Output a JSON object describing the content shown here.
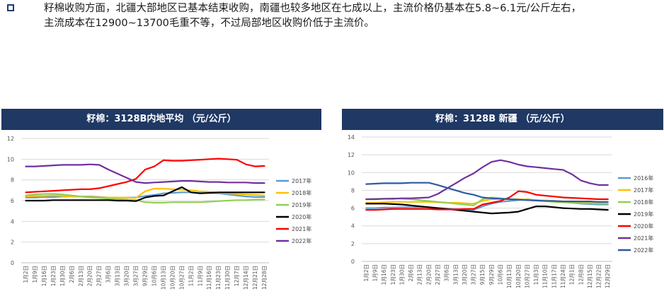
{
  "paragraph": {
    "line1": "籽棉收购方面，北疆大部地区已基本结束收购，南疆也较多地区在七成以上，主流价格仍基本在5.8~6.1元/公斤左右，",
    "line2": "主流成本在12900~13700毛重不等，不过局部地区收购价低于主流价。"
  },
  "chart_data": [
    {
      "type": "line",
      "title": "籽棉：3128B内地平均 （元/公斤）",
      "ylim": [
        0,
        12
      ],
      "yticks": [
        0,
        2,
        4,
        6,
        8,
        10,
        12
      ],
      "categories": [
        "1月2日",
        "1月9日",
        "1月16日",
        "1月23日",
        "1月30日",
        "2月6日",
        "2月13日",
        "2月20日",
        "2月27日",
        "3月6日",
        "3月13日",
        "3月20日",
        "3月27日",
        "9月29日",
        "10月6日",
        "10月13日",
        "10月20日",
        "10月27日",
        "11月2日",
        "11月9日",
        "11月16日",
        "11月23日",
        "11月30日",
        "12月7日",
        "12月14日",
        "12月21日",
        "12月28日"
      ],
      "series": [
        {
          "name": "2017年",
          "color": "#5b9bd5",
          "values": [
            6.3,
            6.3,
            6.35,
            6.35,
            6.4,
            6.4,
            6.4,
            6.4,
            6.35,
            6.3,
            6.3,
            6.3,
            6.3,
            6.45,
            6.55,
            6.7,
            6.75,
            6.8,
            6.8,
            6.75,
            6.75,
            6.7,
            6.6,
            6.5,
            6.4,
            6.35,
            6.35
          ]
        },
        {
          "name": "2018年",
          "color": "#ffc000",
          "values": [
            6.4,
            6.45,
            6.45,
            6.5,
            6.45,
            6.4,
            6.4,
            6.35,
            6.3,
            6.3,
            6.3,
            6.3,
            6.25,
            6.9,
            7.15,
            7.15,
            7.1,
            7.05,
            7.0,
            6.9,
            6.85,
            6.75,
            6.7,
            6.65,
            6.6,
            6.55,
            6.5
          ]
        },
        {
          "name": "2019年",
          "color": "#92d050",
          "values": [
            6.5,
            6.6,
            6.65,
            6.65,
            6.6,
            6.5,
            6.4,
            6.3,
            6.25,
            6.2,
            6.15,
            6.1,
            6.05,
            5.85,
            5.8,
            5.8,
            5.85,
            5.85,
            5.85,
            5.85,
            5.9,
            5.95,
            6.0,
            6.05,
            6.05,
            6.1,
            6.1
          ]
        },
        {
          "name": "2020年",
          "color": "#000000",
          "values": [
            6.0,
            6.0,
            6.0,
            6.05,
            6.05,
            6.05,
            6.05,
            6.05,
            6.05,
            6.05,
            6.0,
            6.0,
            5.95,
            6.3,
            6.45,
            6.5,
            6.9,
            7.3,
            6.8,
            6.7,
            6.75,
            6.8,
            6.8,
            6.8,
            6.8,
            6.8,
            6.8
          ]
        },
        {
          "name": "2021年",
          "color": "#ff0000",
          "values": [
            6.8,
            6.85,
            6.9,
            6.95,
            7.0,
            7.05,
            7.1,
            7.1,
            7.2,
            7.4,
            7.6,
            7.8,
            8.1,
            9.0,
            9.3,
            9.9,
            9.85,
            9.85,
            9.9,
            9.95,
            10.0,
            10.05,
            10.0,
            9.95,
            9.5,
            9.3,
            9.35
          ]
        },
        {
          "name": "2022年",
          "color": "#7030a0",
          "values": [
            9.3,
            9.3,
            9.35,
            9.4,
            9.45,
            9.45,
            9.45,
            9.5,
            9.45,
            9.0,
            8.6,
            8.2,
            7.8,
            7.7,
            7.75,
            7.8,
            7.85,
            7.9,
            7.9,
            7.85,
            7.8,
            7.8,
            7.75,
            7.75,
            7.75,
            7.7,
            7.7
          ]
        }
      ],
      "xlabel": "",
      "ylabel": ""
    },
    {
      "type": "line",
      "title": "籽棉：3128B 新疆 （元/公斤）",
      "ylim": [
        0,
        14
      ],
      "yticks": [
        0,
        2,
        4,
        6,
        8,
        10,
        12,
        14
      ],
      "categories": [
        "1月2日",
        "1月9日",
        "1月16日",
        "1月23日",
        "1月30日",
        "2月6日",
        "2月13日",
        "2月20日",
        "2月27日",
        "3月6日",
        "3月13日",
        "3月20日",
        "3月27日",
        "9月15日",
        "9月29日",
        "10月6日",
        "10月13日",
        "10月20日",
        "10月27日",
        "11月3日",
        "11月10日",
        "11月17日",
        "11月24日",
        "12月1日",
        "12月8日",
        "12月15日",
        "12月22日",
        "12月29日"
      ],
      "series": [
        {
          "name": "2016年",
          "color": "#5b9bd5",
          "values": [
            6.0,
            6.0,
            6.05,
            6.05,
            6.1,
            6.1,
            6.1,
            6.1,
            6.0,
            5.95,
            5.9,
            5.85,
            5.8,
            6.2,
            6.5,
            6.7,
            6.8,
            6.9,
            7.0,
            6.9,
            6.85,
            6.8,
            6.7,
            6.6,
            6.5,
            6.45,
            6.4,
            6.4
          ]
        },
        {
          "name": "2017年",
          "color": "#ffc000",
          "values": [
            6.6,
            6.6,
            6.65,
            6.7,
            6.7,
            6.7,
            6.7,
            6.7,
            6.65,
            6.6,
            6.6,
            6.55,
            6.5,
            6.8,
            7.0,
            7.05,
            7.0,
            7.0,
            6.95,
            6.9,
            6.85,
            6.8,
            6.75,
            6.7,
            6.65,
            6.6,
            6.55,
            6.5
          ]
        },
        {
          "name": "2018年",
          "color": "#92d050",
          "values": [
            7.0,
            7.05,
            7.05,
            7.1,
            7.05,
            7.0,
            6.9,
            6.8,
            6.7,
            6.6,
            6.5,
            6.4,
            6.3,
            7.0,
            7.2,
            7.1,
            7.0,
            6.95,
            6.9,
            6.85,
            6.8,
            6.7,
            6.65,
            6.6,
            6.55,
            6.55,
            6.5,
            6.5
          ]
        },
        {
          "name": "2019年",
          "color": "#000000",
          "values": [
            6.5,
            6.5,
            6.5,
            6.45,
            6.4,
            6.3,
            6.2,
            6.1,
            6.0,
            5.9,
            5.8,
            5.7,
            5.6,
            5.5,
            5.4,
            5.45,
            5.5,
            5.6,
            5.9,
            6.2,
            6.2,
            6.1,
            6.0,
            5.95,
            5.9,
            5.9,
            5.85,
            5.8
          ]
        },
        {
          "name": "2020年",
          "color": "#ff0000",
          "values": [
            5.8,
            5.8,
            5.85,
            5.9,
            5.9,
            5.9,
            5.9,
            5.9,
            5.85,
            5.85,
            5.85,
            5.9,
            5.9,
            6.4,
            6.6,
            6.8,
            7.2,
            7.9,
            7.8,
            7.5,
            7.4,
            7.3,
            7.2,
            7.15,
            7.1,
            7.05,
            7.0,
            7.0
          ]
        },
        {
          "name": "2021年",
          "color": "#7030a0",
          "values": [
            7.0,
            7.0,
            7.05,
            7.05,
            7.1,
            7.1,
            7.15,
            7.2,
            7.6,
            8.2,
            8.8,
            9.4,
            9.9,
            10.6,
            11.2,
            11.4,
            11.2,
            10.9,
            10.7,
            10.6,
            10.5,
            10.4,
            10.3,
            9.8,
            9.1,
            8.8,
            8.6,
            8.6
          ]
        },
        {
          "name": "2022年",
          "color": "#2e5aa0",
          "values": [
            8.7,
            8.75,
            8.8,
            8.8,
            8.8,
            8.85,
            8.85,
            8.85,
            8.6,
            8.3,
            8.0,
            7.7,
            7.5,
            7.2,
            7.1,
            7.05,
            7.0,
            6.95,
            6.9,
            6.85,
            6.8,
            6.8,
            6.75,
            6.75,
            6.75,
            6.75,
            6.7,
            6.7
          ]
        }
      ],
      "xlabel": "",
      "ylabel": ""
    }
  ]
}
